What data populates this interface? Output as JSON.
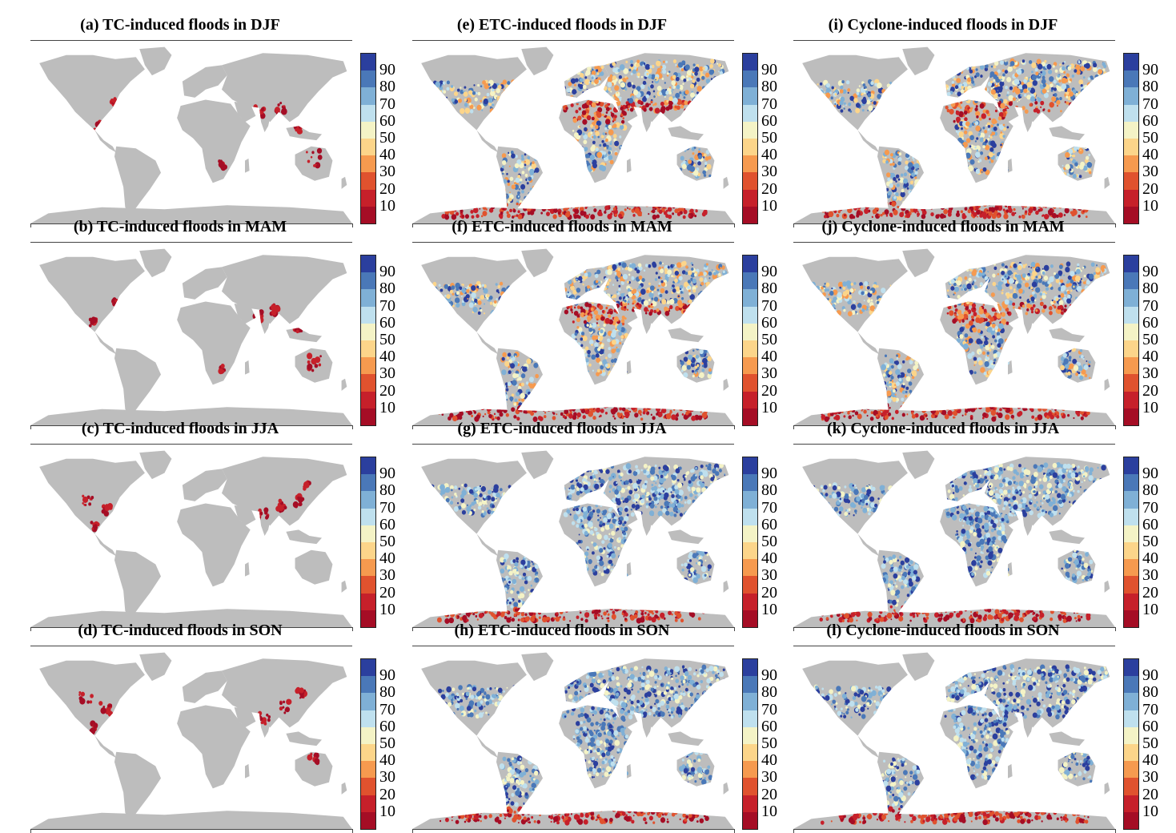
{
  "panels": [
    {
      "id": "a",
      "title": "(a) TC-induced floods in DJF",
      "kind": "tc",
      "season": "DJF"
    },
    {
      "id": "e",
      "title": "(e) ETC-induced floods in DJF",
      "kind": "etc",
      "season": "DJF"
    },
    {
      "id": "i",
      "title": "(i) Cyclone-induced floods in DJF",
      "kind": "cyc",
      "season": "DJF"
    },
    {
      "id": "b",
      "title": "(b) TC-induced floods in MAM",
      "kind": "tc",
      "season": "MAM"
    },
    {
      "id": "f",
      "title": "(f) ETC-induced floods in MAM",
      "kind": "etc",
      "season": "MAM"
    },
    {
      "id": "j",
      "title": "(j) Cyclone-induced floods in MAM",
      "kind": "cyc",
      "season": "MAM"
    },
    {
      "id": "c",
      "title": "(c) TC-induced floods in JJA",
      "kind": "tc",
      "season": "JJA"
    },
    {
      "id": "g",
      "title": "(g) ETC-induced floods in JJA",
      "kind": "etc",
      "season": "JJA"
    },
    {
      "id": "k",
      "title": "(k) Cyclone-induced floods in JJA",
      "kind": "cyc",
      "season": "JJA"
    },
    {
      "id": "d",
      "title": "(d) TC-induced floods in SON",
      "kind": "tc",
      "season": "SON"
    },
    {
      "id": "h",
      "title": "(h) ETC-induced floods in SON",
      "kind": "etc",
      "season": "SON"
    },
    {
      "id": "l",
      "title": "(l) Cyclone-induced floods in SON",
      "kind": "cyc",
      "season": "SON"
    }
  ],
  "colorbar": {
    "labels": [
      "90",
      "80",
      "70",
      "60",
      "50",
      "40",
      "30",
      "20",
      "10"
    ],
    "colors": [
      "#2b3f9e",
      "#4a78b8",
      "#7fb0d6",
      "#bfe0ee",
      "#f4f3c6",
      "#fcd58a",
      "#f69a4f",
      "#e0522e",
      "#c6202a",
      "#a50d25"
    ]
  },
  "colors": {
    "land": "#bdbdbd",
    "ocean": "#ffffff"
  }
}
